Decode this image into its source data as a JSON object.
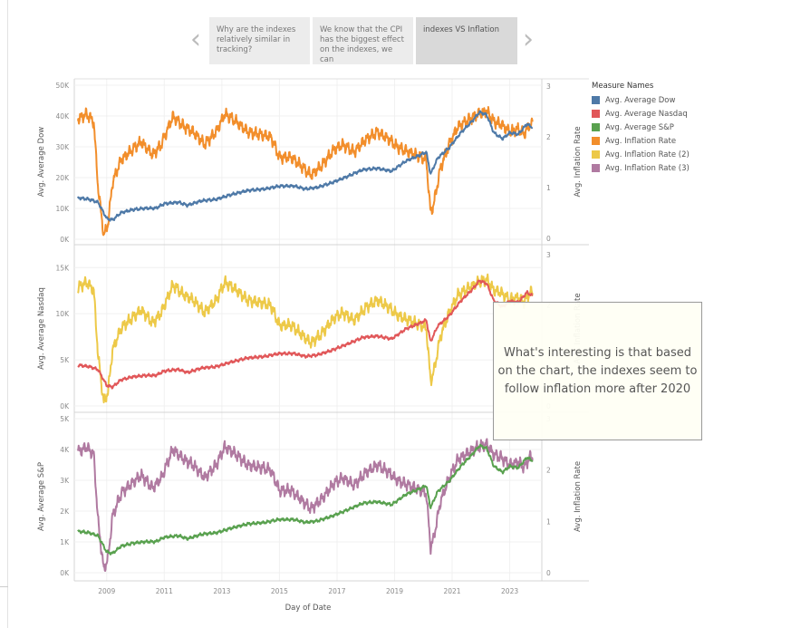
{
  "story": {
    "points": [
      {
        "label": "Why are the indexes relatively similar in tracking?",
        "active": false
      },
      {
        "label": "We know that the CPI has the biggest effect on the indexes, we can",
        "active": false
      },
      {
        "label": "indexes VS Inflation",
        "active": true
      }
    ],
    "prev_glyph": "‹",
    "next_glyph": "›"
  },
  "legend": {
    "title": "Measure Names",
    "items": [
      {
        "label": "Avg. Average Dow",
        "color": "#4e79a7"
      },
      {
        "label": "Avg. Average Nasdaq",
        "color": "#e15759"
      },
      {
        "label": "Avg. Average S&P",
        "color": "#59a14f"
      },
      {
        "label": "Avg. Inflation Rate",
        "color": "#f28e2b"
      },
      {
        "label": "Avg. Inflation Rate (2)",
        "color": "#edc948"
      },
      {
        "label": "Avg. Inflation Rate (3)",
        "color": "#b07aa1"
      }
    ]
  },
  "annotation": {
    "text": "What's interesting is that based on the chart, the indexes seem to follow inflation more after 2020"
  },
  "chart_data": {
    "type": "line",
    "x_label": "Day of Date",
    "x_ticks": [
      "2009",
      "2011",
      "2013",
      "2015",
      "2017",
      "2019",
      "2021",
      "2023"
    ],
    "x_range": [
      2008.0,
      2023.8
    ],
    "inflation_ylim": [
      0,
      3
    ],
    "inflation_ticks": [
      "0",
      "1",
      "2",
      "3"
    ],
    "inflation_label": "Avg. Inflation Rate",
    "inflation_knots": [
      [
        2008.0,
        2.35
      ],
      [
        2008.3,
        2.45
      ],
      [
        2008.55,
        2.3
      ],
      [
        2008.7,
        1.0
      ],
      [
        2008.9,
        0.05
      ],
      [
        2009.05,
        0.3
      ],
      [
        2009.2,
        1.1
      ],
      [
        2009.5,
        1.55
      ],
      [
        2009.8,
        1.7
      ],
      [
        2010.2,
        1.9
      ],
      [
        2010.6,
        1.65
      ],
      [
        2010.9,
        1.85
      ],
      [
        2011.3,
        2.4
      ],
      [
        2011.7,
        2.2
      ],
      [
        2012.0,
        2.1
      ],
      [
        2012.4,
        1.85
      ],
      [
        2012.8,
        2.1
      ],
      [
        2013.1,
        2.45
      ],
      [
        2013.5,
        2.3
      ],
      [
        2013.9,
        2.1
      ],
      [
        2014.3,
        2.05
      ],
      [
        2014.7,
        2.0
      ],
      [
        2015.0,
        1.6
      ],
      [
        2015.4,
        1.6
      ],
      [
        2015.8,
        1.4
      ],
      [
        2016.1,
        1.25
      ],
      [
        2016.5,
        1.45
      ],
      [
        2016.9,
        1.75
      ],
      [
        2017.2,
        1.85
      ],
      [
        2017.6,
        1.7
      ],
      [
        2018.0,
        1.95
      ],
      [
        2018.4,
        2.1
      ],
      [
        2018.8,
        1.95
      ],
      [
        2019.1,
        1.8
      ],
      [
        2019.5,
        1.7
      ],
      [
        2019.9,
        1.6
      ],
      [
        2020.1,
        1.55
      ],
      [
        2020.25,
        0.5
      ],
      [
        2020.35,
        0.65
      ],
      [
        2020.6,
        1.4
      ],
      [
        2020.9,
        1.85
      ],
      [
        2021.2,
        2.2
      ],
      [
        2021.6,
        2.35
      ],
      [
        2021.9,
        2.45
      ],
      [
        2022.2,
        2.5
      ],
      [
        2022.45,
        2.3
      ],
      [
        2022.7,
        2.25
      ],
      [
        2023.0,
        2.1
      ],
      [
        2023.3,
        2.15
      ],
      [
        2023.5,
        2.05
      ],
      [
        2023.7,
        2.25
      ]
    ],
    "index_shape_knots": [
      [
        2008.0,
        0.28
      ],
      [
        2008.4,
        0.27
      ],
      [
        2008.7,
        0.25
      ],
      [
        2009.0,
        0.14
      ],
      [
        2009.2,
        0.13
      ],
      [
        2009.5,
        0.18
      ],
      [
        2009.9,
        0.2
      ],
      [
        2010.4,
        0.21
      ],
      [
        2010.7,
        0.21
      ],
      [
        2011.0,
        0.24
      ],
      [
        2011.5,
        0.25
      ],
      [
        2011.8,
        0.23
      ],
      [
        2012.3,
        0.26
      ],
      [
        2012.8,
        0.27
      ],
      [
        2013.3,
        0.3
      ],
      [
        2013.9,
        0.33
      ],
      [
        2014.5,
        0.34
      ],
      [
        2015.0,
        0.36
      ],
      [
        2015.5,
        0.36
      ],
      [
        2015.9,
        0.34
      ],
      [
        2016.3,
        0.35
      ],
      [
        2016.8,
        0.38
      ],
      [
        2017.3,
        0.42
      ],
      [
        2017.9,
        0.47
      ],
      [
        2018.4,
        0.48
      ],
      [
        2018.9,
        0.46
      ],
      [
        2019.4,
        0.53
      ],
      [
        2019.9,
        0.57
      ],
      [
        2020.1,
        0.59
      ],
      [
        2020.25,
        0.44
      ],
      [
        2020.5,
        0.55
      ],
      [
        2020.9,
        0.62
      ],
      [
        2021.3,
        0.72
      ],
      [
        2021.7,
        0.8
      ],
      [
        2021.95,
        0.86
      ],
      [
        2022.2,
        0.84
      ],
      [
        2022.45,
        0.72
      ],
      [
        2022.75,
        0.68
      ],
      [
        2023.0,
        0.72
      ],
      [
        2023.3,
        0.71
      ],
      [
        2023.6,
        0.78
      ],
      [
        2023.75,
        0.76
      ]
    ],
    "panels": [
      {
        "y_label": "Avg. Average Dow",
        "ylim": [
          0,
          50000
        ],
        "y_ticks": [
          "0K",
          "10K",
          "20K",
          "30K",
          "40K",
          "50K"
        ],
        "index_series": "Avg. Average Dow",
        "index_color": "#4e79a7",
        "index_max": 48000,
        "inflation_series": "Avg. Inflation Rate",
        "inflation_color": "#f28e2b"
      },
      {
        "y_label": "Avg. Average Nasdaq",
        "ylim": [
          0,
          16500
        ],
        "y_ticks": [
          "0K",
          "5K",
          "10K",
          "15K"
        ],
        "index_series": "Avg. Average Nasdaq",
        "index_color": "#e15759",
        "index_max": 15800,
        "inflation_series": "Avg. Inflation Rate (2)",
        "inflation_color": "#edc948"
      },
      {
        "y_label": "Avg. Average S&P",
        "ylim": [
          0,
          5000
        ],
        "y_ticks": [
          "0K",
          "1K",
          "2K",
          "3K",
          "4K",
          "5K"
        ],
        "index_series": "Avg. Average S&P",
        "index_color": "#59a14f",
        "index_max": 4800,
        "inflation_series": "Avg. Inflation Rate (3)",
        "inflation_color": "#b07aa1"
      }
    ]
  }
}
